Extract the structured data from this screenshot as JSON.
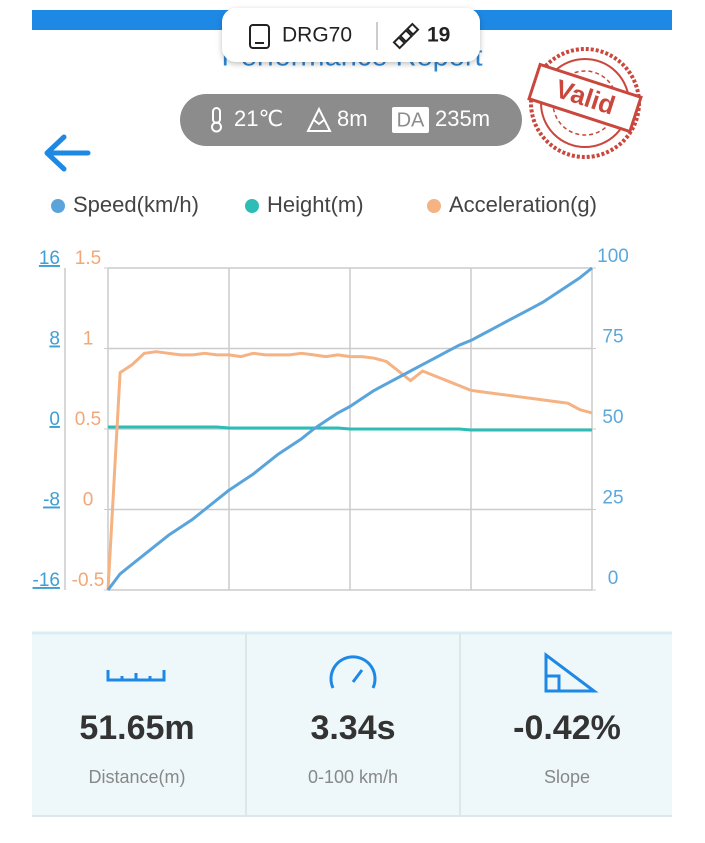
{
  "header": {
    "device": "DRG70",
    "satellites": 19,
    "title": "Performance Report",
    "temperature": "21℃",
    "altitude": "8m",
    "da_label": "DA",
    "density_altitude": "235m",
    "stamp": "Valid"
  },
  "chart_data": {
    "type": "line",
    "categories": [
      null,
      null,
      null,
      null,
      null,
      null,
      null,
      null,
      null,
      null,
      null,
      null,
      null,
      null,
      null,
      null,
      null,
      null,
      null,
      null,
      null,
      null,
      null,
      null,
      null,
      null,
      null,
      null,
      null,
      null,
      null,
      null,
      null,
      null,
      null,
      null,
      null,
      null,
      null,
      null,
      null
    ],
    "series": [
      {
        "name": "Speed(km/h)",
        "color": "#5aa4dc",
        "axis": "y2",
        "values": [
          0,
          5,
          8,
          11,
          14,
          17,
          19.5,
          22,
          25,
          28,
          31,
          33.5,
          36,
          39,
          42,
          44.5,
          47,
          50,
          52.5,
          55,
          57,
          59.5,
          62,
          64,
          66,
          68,
          70,
          72,
          74,
          76,
          77.5,
          79.5,
          81.5,
          83.5,
          85.5,
          87.5,
          89.5,
          92,
          94.5,
          97,
          100
        ]
      },
      {
        "name": "Height(m)",
        "color": "#2dbdb6",
        "axis": "y",
        "values": [
          0.2,
          0.2,
          0.2,
          0.2,
          0.2,
          0.2,
          0.2,
          0.2,
          0.2,
          0.2,
          0.1,
          0.1,
          0.1,
          0.1,
          0.1,
          0.1,
          0.1,
          0.1,
          0.1,
          0.1,
          0,
          0,
          0,
          0,
          0,
          0,
          0,
          0,
          0,
          0,
          -0.1,
          -0.1,
          -0.1,
          -0.1,
          -0.1,
          -0.1,
          -0.1,
          -0.1,
          -0.1,
          -0.1,
          -0.1
        ]
      },
      {
        "name": "Acceleration(g)",
        "color": "#f5b282",
        "axis": "y3",
        "values": [
          -0.5,
          0.85,
          0.9,
          0.97,
          0.98,
          0.97,
          0.96,
          0.96,
          0.97,
          0.96,
          0.96,
          0.95,
          0.97,
          0.96,
          0.96,
          0.96,
          0.97,
          0.96,
          0.95,
          0.96,
          0.95,
          0.95,
          0.94,
          0.92,
          0.86,
          0.8,
          0.86,
          0.83,
          0.8,
          0.77,
          0.74,
          0.73,
          0.72,
          0.71,
          0.7,
          0.69,
          0.68,
          0.67,
          0.66,
          0.62,
          0.6
        ]
      }
    ],
    "ylim": [
      -16,
      16
    ],
    "yticks": [
      16,
      8,
      0,
      -8,
      -16
    ],
    "y3lim": [
      -0.5,
      1.5
    ],
    "y3ticks": [
      1.5,
      1,
      0.5,
      0,
      -0.5
    ],
    "y2lim": [
      0,
      100
    ],
    "y2ticks": [
      100,
      75,
      50,
      25,
      0
    ],
    "grid": true
  },
  "stats": [
    {
      "value": "51.65m",
      "label": "Distance(m)"
    },
    {
      "value": "3.34s",
      "label": "0-100 km/h"
    },
    {
      "value": "-0.42%",
      "label": "Slope"
    }
  ]
}
